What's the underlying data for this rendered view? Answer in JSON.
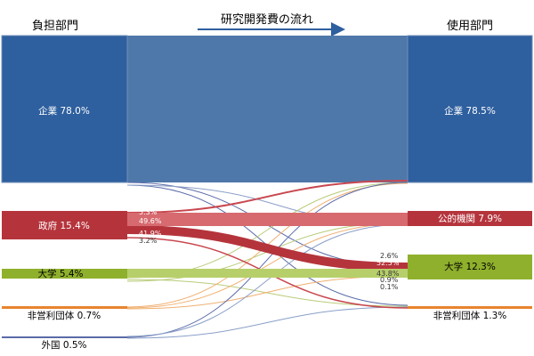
{
  "header": {
    "left_title": "負担部門",
    "right_title": "使用部門",
    "flow_title": "研究開発費の流れ"
  },
  "sources": [
    {
      "label": "企業 78.0%",
      "color": "#2e5f9e"
    },
    {
      "label": "政府 15.4%",
      "color": "#b5343c"
    },
    {
      "label": "大学 5.4%",
      "color": "#8fb02c"
    },
    {
      "label": "非営利団体 0.7%",
      "color": "#e8842e"
    },
    {
      "label": "外国 0.5%",
      "color": "#5a6aa8"
    }
  ],
  "targets": [
    {
      "label": "企業 78.5%",
      "color": "#2e5f9e"
    },
    {
      "label": "公的機関 7.9%",
      "color": "#b5343c"
    },
    {
      "label": "大学 12.3%",
      "color": "#8fb02c"
    },
    {
      "label": "非営利団体 1.3%",
      "color": "#e8842e"
    }
  ],
  "flow_labels": {
    "gov_to_company": "5.3%",
    "gov_to_public": "49.6%",
    "gov_to_university": "41.9%",
    "gov_to_nonprofit": "3.2%",
    "company_to_university": "2.6%",
    "gov_share_of_university": "52.5%",
    "university_to_university": "43.8%",
    "nonprofit_to_university": "0.9%",
    "foreign_to_university": "0.1%"
  }
}
